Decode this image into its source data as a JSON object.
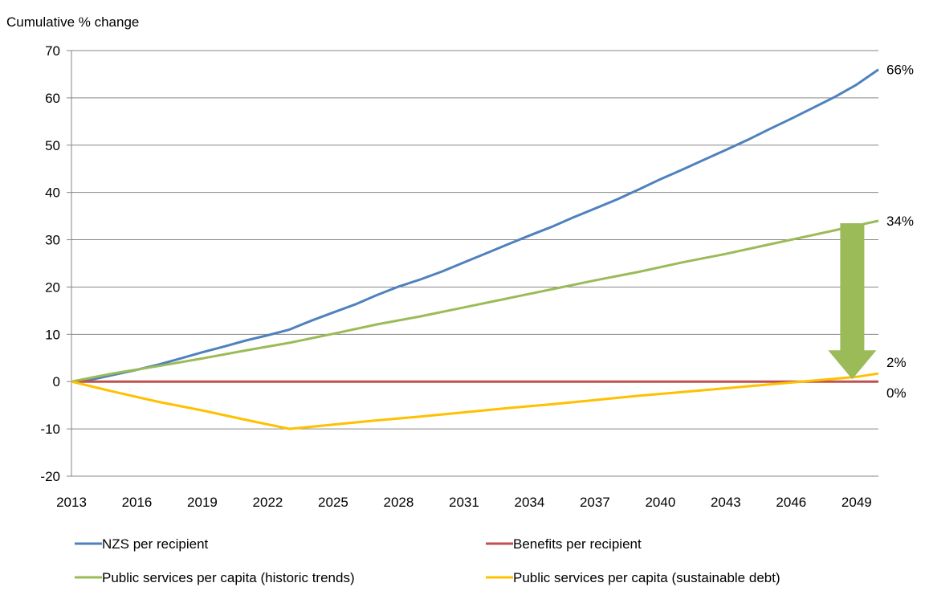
{
  "chart_data": {
    "type": "line",
    "title": "",
    "ylabel": "Cumulative % change",
    "xlabel": "",
    "ylim": [
      -20,
      70
    ],
    "yticks": [
      -20,
      -10,
      0,
      10,
      20,
      30,
      40,
      50,
      60,
      70
    ],
    "xlim": [
      2013,
      2050
    ],
    "xticks": [
      2013,
      2016,
      2019,
      2022,
      2025,
      2028,
      2031,
      2034,
      2037,
      2040,
      2043,
      2046,
      2049
    ],
    "grid": "horizontal",
    "legend_position": "bottom",
    "series": [
      {
        "name": "NZS per recipient",
        "color": "#4F81BD",
        "end_label": "66%",
        "points": [
          [
            2013,
            0
          ],
          [
            2014,
            0.5
          ],
          [
            2015,
            1.5
          ],
          [
            2016,
            2.5
          ],
          [
            2017,
            3.6
          ],
          [
            2018,
            4.9
          ],
          [
            2019,
            6.2
          ],
          [
            2020,
            7.4
          ],
          [
            2021,
            8.7
          ],
          [
            2022,
            9.8
          ],
          [
            2023,
            11
          ],
          [
            2024,
            12.9
          ],
          [
            2025,
            14.6
          ],
          [
            2026,
            16.3
          ],
          [
            2027,
            18.3
          ],
          [
            2028,
            20.1
          ],
          [
            2029,
            21.6
          ],
          [
            2030,
            23.3
          ],
          [
            2031,
            25.2
          ],
          [
            2032,
            27.1
          ],
          [
            2033,
            29.0
          ],
          [
            2034,
            30.9
          ],
          [
            2035,
            32.7
          ],
          [
            2036,
            34.7
          ],
          [
            2037,
            36.6
          ],
          [
            2038,
            38.5
          ],
          [
            2039,
            40.6
          ],
          [
            2040,
            42.8
          ],
          [
            2041,
            44.8
          ],
          [
            2042,
            46.9
          ],
          [
            2043,
            49.0
          ],
          [
            2044,
            51.1
          ],
          [
            2045,
            53.4
          ],
          [
            2046,
            55.6
          ],
          [
            2047,
            57.9
          ],
          [
            2048,
            60.2
          ],
          [
            2049,
            62.8
          ],
          [
            2050,
            66.0
          ]
        ]
      },
      {
        "name": "Benefits per recipient",
        "color": "#C0504D",
        "end_label": "0%",
        "points": [
          [
            2013,
            0
          ],
          [
            2050,
            0
          ]
        ]
      },
      {
        "name": "Public services per capita (historic trends)",
        "color": "#9BBB59",
        "end_label": "34%",
        "points": [
          [
            2013,
            0
          ],
          [
            2015,
            1.8
          ],
          [
            2017,
            3.3
          ],
          [
            2019,
            4.9
          ],
          [
            2021,
            6.6
          ],
          [
            2023,
            8.2
          ],
          [
            2025,
            10.1
          ],
          [
            2027,
            12.1
          ],
          [
            2029,
            13.8
          ],
          [
            2031,
            15.7
          ],
          [
            2033,
            17.6
          ],
          [
            2035,
            19.5
          ],
          [
            2037,
            21.4
          ],
          [
            2039,
            23.2
          ],
          [
            2041,
            25.2
          ],
          [
            2043,
            27.0
          ],
          [
            2045,
            29.0
          ],
          [
            2047,
            31.0
          ],
          [
            2049,
            33.0
          ],
          [
            2050,
            34.0
          ]
        ]
      },
      {
        "name": "Public services per capita (sustainable debt)",
        "color": "#FFC000",
        "end_label": "2%",
        "points": [
          [
            2013,
            0
          ],
          [
            2015,
            -2.2
          ],
          [
            2017,
            -4.3
          ],
          [
            2019,
            -6.1
          ],
          [
            2021,
            -8.1
          ],
          [
            2023,
            -10.0
          ],
          [
            2025,
            -9.1
          ],
          [
            2027,
            -8.2
          ],
          [
            2029,
            -7.4
          ],
          [
            2031,
            -6.5
          ],
          [
            2033,
            -5.6
          ],
          [
            2035,
            -4.8
          ],
          [
            2037,
            -3.9
          ],
          [
            2039,
            -3.0
          ],
          [
            2041,
            -2.2
          ],
          [
            2043,
            -1.4
          ],
          [
            2045,
            -0.6
          ],
          [
            2047,
            0.2
          ],
          [
            2049,
            1.0
          ],
          [
            2050,
            1.7
          ]
        ]
      }
    ],
    "annotation_arrow": {
      "color": "#9BBB59",
      "x": 2048.8,
      "from_y": 33.5,
      "to_y": 0.5
    }
  }
}
